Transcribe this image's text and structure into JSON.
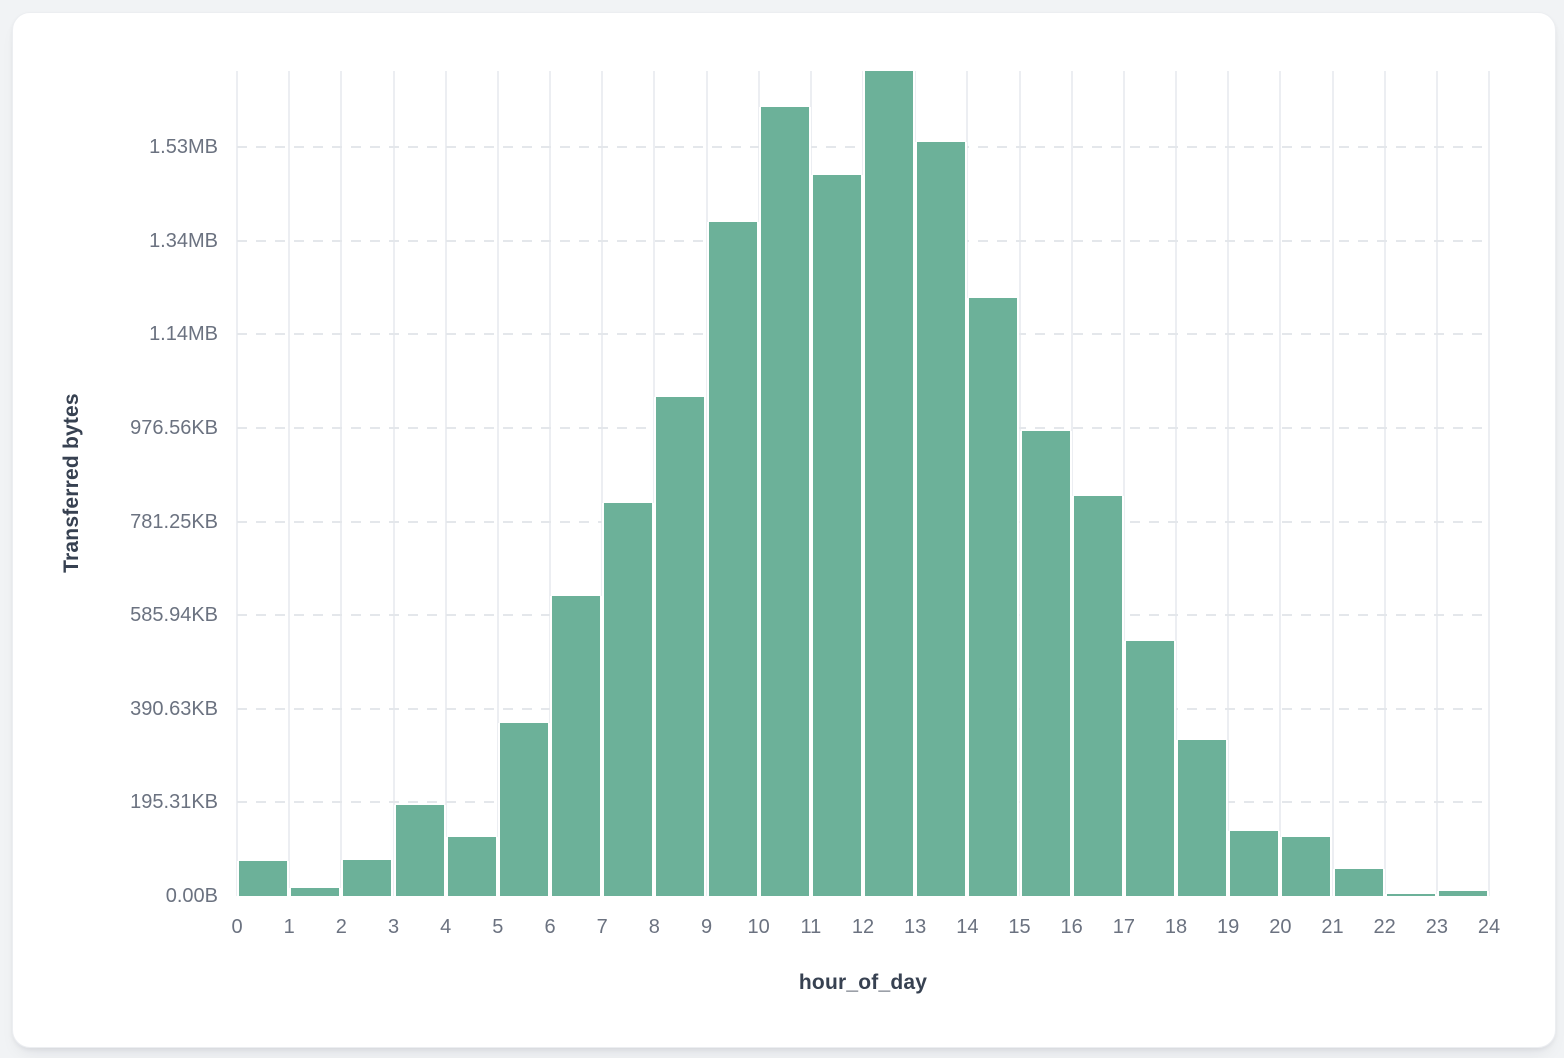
{
  "page": {
    "background_color": "#f1f3f5"
  },
  "card": {
    "background_color": "#ffffff",
    "border_color": "#eceef1"
  },
  "chart_data": {
    "type": "bar",
    "subtype": "histogram",
    "title": "",
    "xlabel": "hour_of_day",
    "ylabel": "Transferred bytes",
    "legend": "none",
    "grid": {
      "vertical": "solid",
      "horizontal": "dashed"
    },
    "xlim": [
      0,
      24
    ],
    "ylim_bytes": [
      0,
      1762800
    ],
    "bin_width_hours": 1,
    "categories": [
      0,
      1,
      2,
      3,
      4,
      5,
      6,
      7,
      8,
      9,
      10,
      11,
      12,
      13,
      14,
      15,
      16,
      17,
      18,
      19,
      20,
      21,
      22,
      23
    ],
    "values_bytes": [
      74800,
      17100,
      77000,
      195500,
      126700,
      369000,
      641700,
      839100,
      1066900,
      1439500,
      1686500,
      1540600,
      1762800,
      1611700,
      1277100,
      994200,
      854700,
      545500,
      333300,
      139500,
      126700,
      57100,
      3600,
      11300
    ],
    "x_tick_labels": [
      "0",
      "1",
      "2",
      "3",
      "4",
      "5",
      "6",
      "7",
      "8",
      "9",
      "10",
      "11",
      "12",
      "13",
      "14",
      "15",
      "16",
      "17",
      "18",
      "19",
      "20",
      "21",
      "22",
      "23",
      "24"
    ],
    "y_ticks": [
      {
        "value_bytes": 0,
        "label": "0.00B"
      },
      {
        "value_bytes": 200000,
        "label": "195.31KB"
      },
      {
        "value_bytes": 400000,
        "label": "390.63KB"
      },
      {
        "value_bytes": 600000,
        "label": "585.94KB"
      },
      {
        "value_bytes": 800000,
        "label": "781.25KB"
      },
      {
        "value_bytes": 1000000,
        "label": "976.56KB"
      },
      {
        "value_bytes": 1200000,
        "label": "1.14MB"
      },
      {
        "value_bytes": 1400000,
        "label": "1.34MB"
      },
      {
        "value_bytes": 1600000,
        "label": "1.53MB"
      }
    ],
    "colors": {
      "bar_fill": "#6CB199",
      "bar_gap": "#ffffff",
      "vertical_gridline": "#eceef2",
      "horizontal_gridline": "#e4e7eb",
      "tick_label": "#6b7280",
      "axis_title": "#374151"
    }
  }
}
